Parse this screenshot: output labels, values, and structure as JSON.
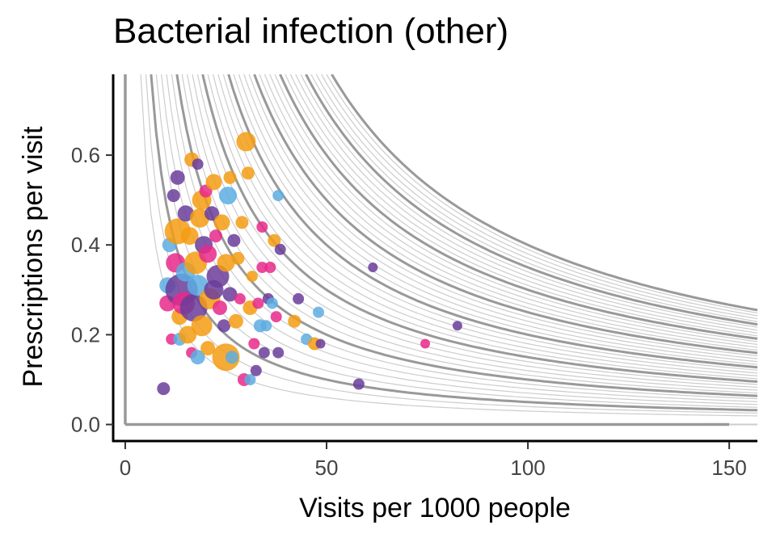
{
  "chart_data": {
    "type": "scatter",
    "title": "Bacterial infection (other)",
    "xlabel": "Visits per 1000 people",
    "ylabel": "Prescriptions per visit",
    "xlim": [
      -3,
      157
    ],
    "ylim": [
      -0.035,
      0.78
    ],
    "x_ticks": [
      "0",
      "50",
      "100",
      "150"
    ],
    "y_ticks": [
      "0.0",
      "0.2",
      "0.4",
      "0.6"
    ],
    "grid": false,
    "colors": {
      "purple": "#6a3d9a",
      "pink": "#e7298a",
      "orange": "#f39c12",
      "blue": "#5dade2",
      "reference": "#999999",
      "reference_minor": "#cccccc"
    },
    "reference_curves": {
      "minor_products": [
        3,
        4,
        6,
        7,
        8,
        9,
        11,
        12,
        13,
        14,
        16,
        17,
        18,
        19,
        21,
        22,
        23,
        24,
        26,
        27,
        28,
        29,
        31,
        32,
        33,
        34,
        36,
        37,
        38,
        39
      ],
      "major_products": [
        5,
        10,
        15,
        20,
        25,
        30,
        35,
        40
      ]
    },
    "points": [
      {
        "x": 9.5,
        "y": 0.08,
        "c": "purple",
        "s": 8
      },
      {
        "x": 10.5,
        "y": 0.27,
        "c": "pink",
        "s": 10
      },
      {
        "x": 10.5,
        "y": 0.31,
        "c": "blue",
        "s": 10
      },
      {
        "x": 11,
        "y": 0.4,
        "c": "blue",
        "s": 9
      },
      {
        "x": 11.5,
        "y": 0.19,
        "c": "pink",
        "s": 7
      },
      {
        "x": 12,
        "y": 0.51,
        "c": "purple",
        "s": 8
      },
      {
        "x": 12.5,
        "y": 0.36,
        "c": "pink",
        "s": 12
      },
      {
        "x": 13,
        "y": 0.55,
        "c": "purple",
        "s": 9
      },
      {
        "x": 13,
        "y": 0.43,
        "c": "orange",
        "s": 16
      },
      {
        "x": 13.5,
        "y": 0.24,
        "c": "orange",
        "s": 10
      },
      {
        "x": 13.5,
        "y": 0.19,
        "c": "blue",
        "s": 8
      },
      {
        "x": 14,
        "y": 0.3,
        "c": "purple",
        "s": 20
      },
      {
        "x": 14.5,
        "y": 0.27,
        "c": "pink",
        "s": 14
      },
      {
        "x": 15,
        "y": 0.47,
        "c": "purple",
        "s": 10
      },
      {
        "x": 15,
        "y": 0.34,
        "c": "blue",
        "s": 12
      },
      {
        "x": 15.5,
        "y": 0.2,
        "c": "orange",
        "s": 11
      },
      {
        "x": 16,
        "y": 0.42,
        "c": "orange",
        "s": 11
      },
      {
        "x": 16.5,
        "y": 0.59,
        "c": "orange",
        "s": 9
      },
      {
        "x": 16.5,
        "y": 0.16,
        "c": "pink",
        "s": 7
      },
      {
        "x": 17,
        "y": 0.26,
        "c": "purple",
        "s": 17
      },
      {
        "x": 17.5,
        "y": 0.36,
        "c": "orange",
        "s": 14
      },
      {
        "x": 18,
        "y": 0.58,
        "c": "purple",
        "s": 7
      },
      {
        "x": 18,
        "y": 0.31,
        "c": "blue",
        "s": 13
      },
      {
        "x": 18,
        "y": 0.15,
        "c": "blue",
        "s": 9
      },
      {
        "x": 18.5,
        "y": 0.46,
        "c": "orange",
        "s": 12
      },
      {
        "x": 19,
        "y": 0.22,
        "c": "orange",
        "s": 13
      },
      {
        "x": 19,
        "y": 0.5,
        "c": "orange",
        "s": 12
      },
      {
        "x": 19.5,
        "y": 0.4,
        "c": "purple",
        "s": 11
      },
      {
        "x": 20,
        "y": 0.52,
        "c": "pink",
        "s": 8
      },
      {
        "x": 20.5,
        "y": 0.38,
        "c": "pink",
        "s": 11
      },
      {
        "x": 20.5,
        "y": 0.17,
        "c": "orange",
        "s": 9
      },
      {
        "x": 21,
        "y": 0.28,
        "c": "orange",
        "s": 13
      },
      {
        "x": 21.5,
        "y": 0.47,
        "c": "purple",
        "s": 9
      },
      {
        "x": 22,
        "y": 0.54,
        "c": "orange",
        "s": 10
      },
      {
        "x": 22,
        "y": 0.3,
        "c": "purple",
        "s": 12
      },
      {
        "x": 22.5,
        "y": 0.42,
        "c": "pink",
        "s": 8
      },
      {
        "x": 23,
        "y": 0.33,
        "c": "purple",
        "s": 14
      },
      {
        "x": 23.5,
        "y": 0.26,
        "c": "pink",
        "s": 9
      },
      {
        "x": 24,
        "y": 0.45,
        "c": "orange",
        "s": 10
      },
      {
        "x": 24.5,
        "y": 0.22,
        "c": "purple",
        "s": 8
      },
      {
        "x": 25,
        "y": 0.15,
        "c": "orange",
        "s": 17
      },
      {
        "x": 25,
        "y": 0.36,
        "c": "orange",
        "s": 11
      },
      {
        "x": 25.5,
        "y": 0.51,
        "c": "blue",
        "s": 11
      },
      {
        "x": 26,
        "y": 0.55,
        "c": "orange",
        "s": 8
      },
      {
        "x": 26,
        "y": 0.29,
        "c": "purple",
        "s": 9
      },
      {
        "x": 26.5,
        "y": 0.15,
        "c": "blue",
        "s": 8
      },
      {
        "x": 27,
        "y": 0.41,
        "c": "purple",
        "s": 8
      },
      {
        "x": 27.5,
        "y": 0.23,
        "c": "orange",
        "s": 9
      },
      {
        "x": 28,
        "y": 0.37,
        "c": "orange",
        "s": 8
      },
      {
        "x": 28.5,
        "y": 0.28,
        "c": "pink",
        "s": 7
      },
      {
        "x": 29,
        "y": 0.45,
        "c": "orange",
        "s": 8
      },
      {
        "x": 29.5,
        "y": 0.1,
        "c": "pink",
        "s": 8
      },
      {
        "x": 30,
        "y": 0.63,
        "c": "orange",
        "s": 12
      },
      {
        "x": 30.5,
        "y": 0.56,
        "c": "orange",
        "s": 8
      },
      {
        "x": 31,
        "y": 0.26,
        "c": "orange",
        "s": 9
      },
      {
        "x": 31,
        "y": 0.1,
        "c": "blue",
        "s": 7
      },
      {
        "x": 31.5,
        "y": 0.33,
        "c": "orange",
        "s": 7
      },
      {
        "x": 32,
        "y": 0.18,
        "c": "pink",
        "s": 7
      },
      {
        "x": 32.5,
        "y": 0.12,
        "c": "purple",
        "s": 7
      },
      {
        "x": 33,
        "y": 0.27,
        "c": "pink",
        "s": 7
      },
      {
        "x": 33.5,
        "y": 0.22,
        "c": "blue",
        "s": 8
      },
      {
        "x": 34,
        "y": 0.35,
        "c": "pink",
        "s": 7
      },
      {
        "x": 34,
        "y": 0.44,
        "c": "pink",
        "s": 7
      },
      {
        "x": 34.5,
        "y": 0.16,
        "c": "purple",
        "s": 7
      },
      {
        "x": 35,
        "y": 0.22,
        "c": "blue",
        "s": 7
      },
      {
        "x": 35.5,
        "y": 0.28,
        "c": "purple",
        "s": 7
      },
      {
        "x": 36,
        "y": 0.35,
        "c": "pink",
        "s": 7
      },
      {
        "x": 36.5,
        "y": 0.27,
        "c": "blue",
        "s": 7
      },
      {
        "x": 37,
        "y": 0.41,
        "c": "orange",
        "s": 8
      },
      {
        "x": 37.5,
        "y": 0.24,
        "c": "pink",
        "s": 7
      },
      {
        "x": 38,
        "y": 0.51,
        "c": "blue",
        "s": 7
      },
      {
        "x": 38,
        "y": 0.16,
        "c": "purple",
        "s": 7
      },
      {
        "x": 38.5,
        "y": 0.39,
        "c": "purple",
        "s": 7
      },
      {
        "x": 42,
        "y": 0.23,
        "c": "orange",
        "s": 8
      },
      {
        "x": 43,
        "y": 0.28,
        "c": "purple",
        "s": 7
      },
      {
        "x": 45,
        "y": 0.19,
        "c": "blue",
        "s": 7
      },
      {
        "x": 47,
        "y": 0.18,
        "c": "orange",
        "s": 8
      },
      {
        "x": 48,
        "y": 0.25,
        "c": "blue",
        "s": 7
      },
      {
        "x": 48.5,
        "y": 0.18,
        "c": "purple",
        "s": 6
      },
      {
        "x": 58,
        "y": 0.09,
        "c": "purple",
        "s": 7
      },
      {
        "x": 61.5,
        "y": 0.35,
        "c": "purple",
        "s": 6
      },
      {
        "x": 74.5,
        "y": 0.18,
        "c": "pink",
        "s": 6
      },
      {
        "x": 82.5,
        "y": 0.22,
        "c": "purple",
        "s": 6
      }
    ]
  }
}
